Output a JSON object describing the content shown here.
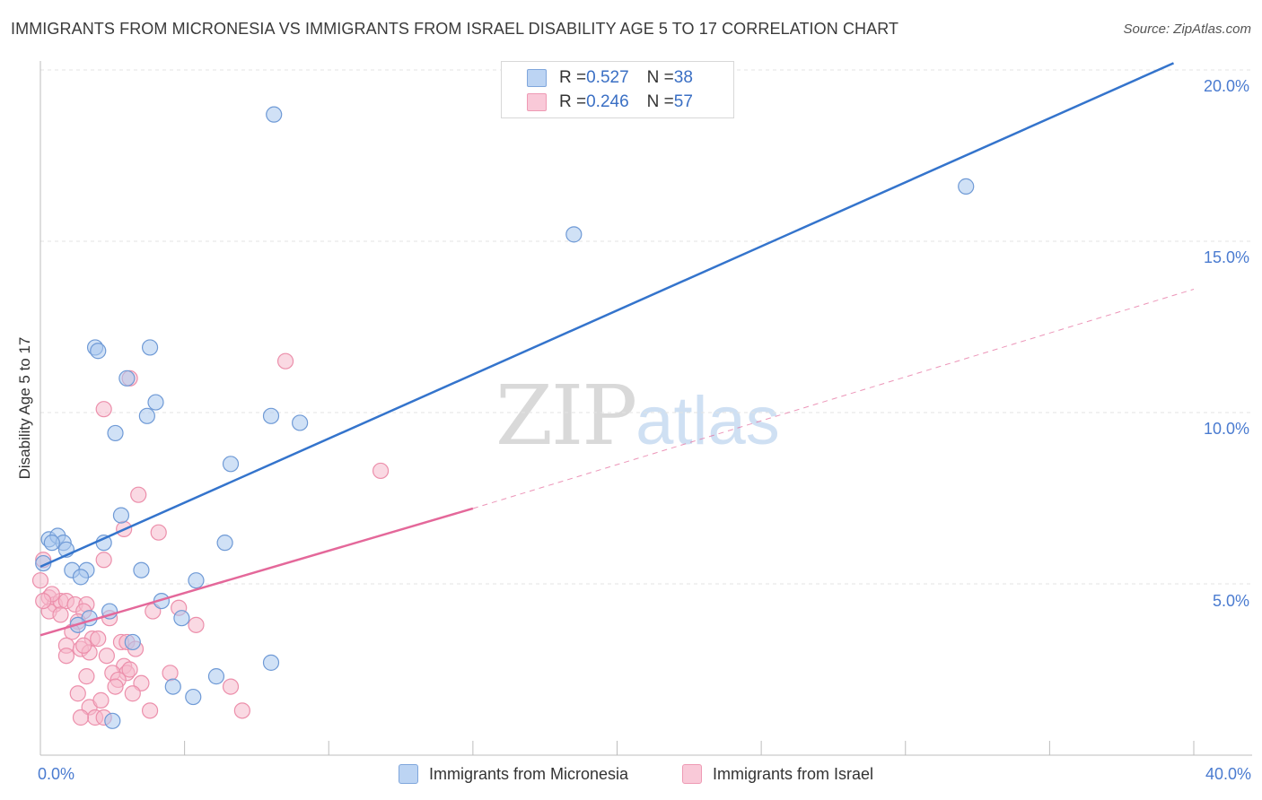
{
  "header": {
    "title": "IMMIGRANTS FROM MICRONESIA VS IMMIGRANTS FROM ISRAEL DISABILITY AGE 5 TO 17 CORRELATION CHART",
    "source": "Source: ZipAtlas.com"
  },
  "watermark": {
    "zip": "ZIP",
    "atlas": "atlas"
  },
  "legend": {
    "rows": [
      {
        "r_label": "R = ",
        "r_value": "0.527",
        "n_label": "N = ",
        "n_value": "38"
      },
      {
        "r_label": "R = ",
        "r_value": "0.246",
        "n_label": "N = ",
        "n_value": "57"
      }
    ]
  },
  "colors": {
    "micronesia_fill": "#a9c8ee",
    "micronesia_stroke": "#6f9ad6",
    "micronesia_line": "#3474cc",
    "israel_fill": "#f6b9cc",
    "israel_stroke": "#ec8fab",
    "israel_line": "#e4689a",
    "grid": "#e3e3e3",
    "tick_text": "#4a7bd0"
  },
  "chart_data": {
    "type": "scatter",
    "title": "IMMIGRANTS FROM MICRONESIA VS IMMIGRANTS FROM ISRAEL DISABILITY AGE 5 TO 17 CORRELATION CHART",
    "xlabel": "",
    "ylabel": "Disability Age 5 to 17",
    "xlim": [
      0,
      40
    ],
    "ylim": [
      0,
      20
    ],
    "x_tick_labels": [
      "0.0%",
      "40.0%"
    ],
    "y_ticks": [
      5,
      10,
      15,
      20
    ],
    "y_tick_labels": [
      "5.0%",
      "10.0%",
      "15.0%",
      "20.0%"
    ],
    "grid": true,
    "legend_position": "top-center",
    "series": [
      {
        "name": "Immigrants from Micronesia",
        "r": 0.527,
        "n": 38,
        "trend": {
          "x": [
            0,
            39.3
          ],
          "y": [
            5.5,
            20.2
          ],
          "style": "solid"
        },
        "points": [
          [
            8.1,
            18.7
          ],
          [
            32.1,
            16.6
          ],
          [
            18.5,
            15.2
          ],
          [
            1.9,
            11.9
          ],
          [
            2.0,
            11.8
          ],
          [
            3.8,
            11.9
          ],
          [
            3.0,
            11.0
          ],
          [
            4.0,
            10.3
          ],
          [
            3.7,
            9.9
          ],
          [
            8.0,
            9.9
          ],
          [
            9.0,
            9.7
          ],
          [
            2.6,
            9.4
          ],
          [
            6.6,
            8.5
          ],
          [
            2.8,
            7.0
          ],
          [
            0.3,
            6.3
          ],
          [
            0.6,
            6.4
          ],
          [
            0.8,
            6.2
          ],
          [
            0.9,
            6.0
          ],
          [
            2.2,
            6.2
          ],
          [
            6.4,
            6.2
          ],
          [
            1.1,
            5.4
          ],
          [
            1.6,
            5.4
          ],
          [
            1.4,
            5.2
          ],
          [
            3.5,
            5.4
          ],
          [
            5.4,
            5.1
          ],
          [
            0.1,
            5.6
          ],
          [
            4.2,
            4.5
          ],
          [
            2.4,
            4.2
          ],
          [
            1.7,
            4.0
          ],
          [
            1.3,
            3.8
          ],
          [
            4.9,
            4.0
          ],
          [
            3.2,
            3.3
          ],
          [
            8.0,
            2.7
          ],
          [
            6.1,
            2.3
          ],
          [
            4.6,
            2.0
          ],
          [
            5.3,
            1.7
          ],
          [
            2.5,
            1.0
          ],
          [
            0.4,
            6.2
          ]
        ]
      },
      {
        "name": "Immigrants from Israel",
        "r": 0.246,
        "n": 57,
        "trend": {
          "x": [
            0,
            15.0
          ],
          "y": [
            3.5,
            7.2
          ],
          "style": "solid"
        },
        "trend_ext": {
          "x": [
            15.0,
            40.0
          ],
          "y": [
            7.2,
            13.6
          ],
          "style": "dashed"
        },
        "points": [
          [
            8.5,
            11.5
          ],
          [
            3.1,
            11.0
          ],
          [
            2.2,
            10.1
          ],
          [
            11.8,
            8.3
          ],
          [
            3.4,
            7.6
          ],
          [
            2.9,
            6.6
          ],
          [
            4.1,
            6.5
          ],
          [
            0.1,
            5.7
          ],
          [
            2.2,
            5.7
          ],
          [
            0.0,
            5.1
          ],
          [
            0.3,
            4.6
          ],
          [
            0.5,
            4.4
          ],
          [
            0.7,
            4.5
          ],
          [
            0.9,
            4.5
          ],
          [
            1.2,
            4.4
          ],
          [
            1.6,
            4.4
          ],
          [
            0.3,
            4.2
          ],
          [
            0.7,
            4.1
          ],
          [
            1.5,
            4.2
          ],
          [
            2.4,
            4.0
          ],
          [
            3.9,
            4.2
          ],
          [
            4.8,
            4.3
          ],
          [
            1.3,
            3.9
          ],
          [
            5.4,
            3.8
          ],
          [
            1.1,
            3.6
          ],
          [
            1.8,
            3.4
          ],
          [
            2.8,
            3.3
          ],
          [
            3.0,
            3.3
          ],
          [
            0.9,
            3.2
          ],
          [
            1.4,
            3.1
          ],
          [
            2.0,
            3.4
          ],
          [
            3.3,
            3.1
          ],
          [
            1.7,
            3.0
          ],
          [
            2.3,
            2.9
          ],
          [
            0.9,
            2.9
          ],
          [
            2.9,
            2.6
          ],
          [
            3.0,
            2.4
          ],
          [
            1.6,
            2.3
          ],
          [
            2.5,
            2.4
          ],
          [
            3.5,
            2.1
          ],
          [
            2.7,
            2.2
          ],
          [
            2.6,
            2.0
          ],
          [
            6.6,
            2.0
          ],
          [
            3.2,
            1.8
          ],
          [
            1.3,
            1.8
          ],
          [
            1.7,
            1.4
          ],
          [
            1.9,
            1.1
          ],
          [
            3.8,
            1.3
          ],
          [
            7.0,
            1.3
          ],
          [
            1.4,
            1.1
          ],
          [
            2.2,
            1.1
          ],
          [
            2.1,
            1.6
          ],
          [
            0.4,
            4.7
          ],
          [
            0.1,
            4.5
          ],
          [
            4.5,
            2.4
          ],
          [
            3.1,
            2.5
          ],
          [
            1.5,
            3.2
          ]
        ]
      }
    ]
  }
}
